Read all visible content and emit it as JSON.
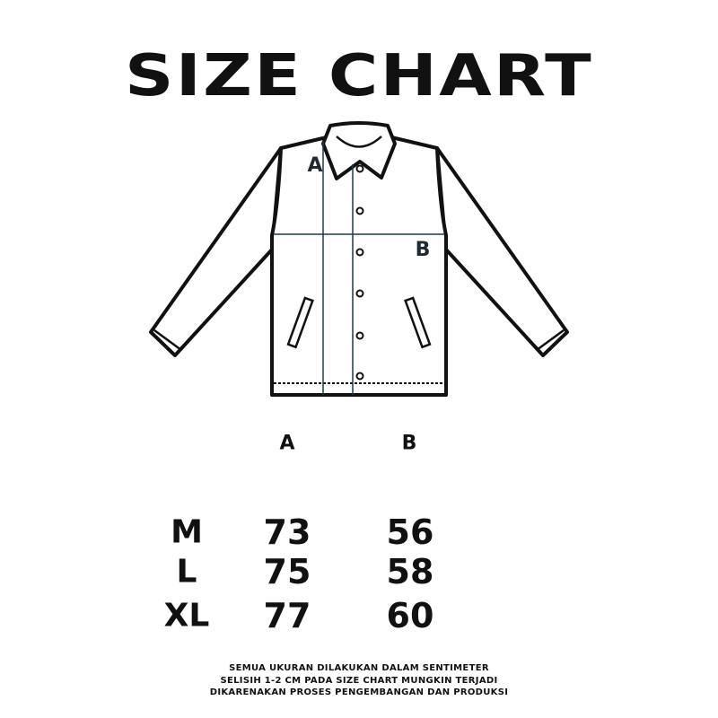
{
  "title": "SIZE CHART",
  "diagram": {
    "label_a": "A",
    "label_b": "B",
    "measure_color": "#1f3a4a"
  },
  "table": {
    "headers": [
      "A",
      "B"
    ],
    "rows": [
      {
        "size": "M",
        "a": "73",
        "b": "56"
      },
      {
        "size": "L",
        "a": "75",
        "b": "58"
      },
      {
        "size": "XL",
        "a": "77",
        "b": "60"
      }
    ]
  },
  "footer": [
    "SEMUA UKURAN DILAKUKAN DALAM SENTIMETER",
    "SELISIH 1-2 CM PADA SIZE CHART MUNGKIN TERJADI",
    "DIKARENAKAN PROSES PENGEMBANGAN DAN PRODUKSI"
  ]
}
